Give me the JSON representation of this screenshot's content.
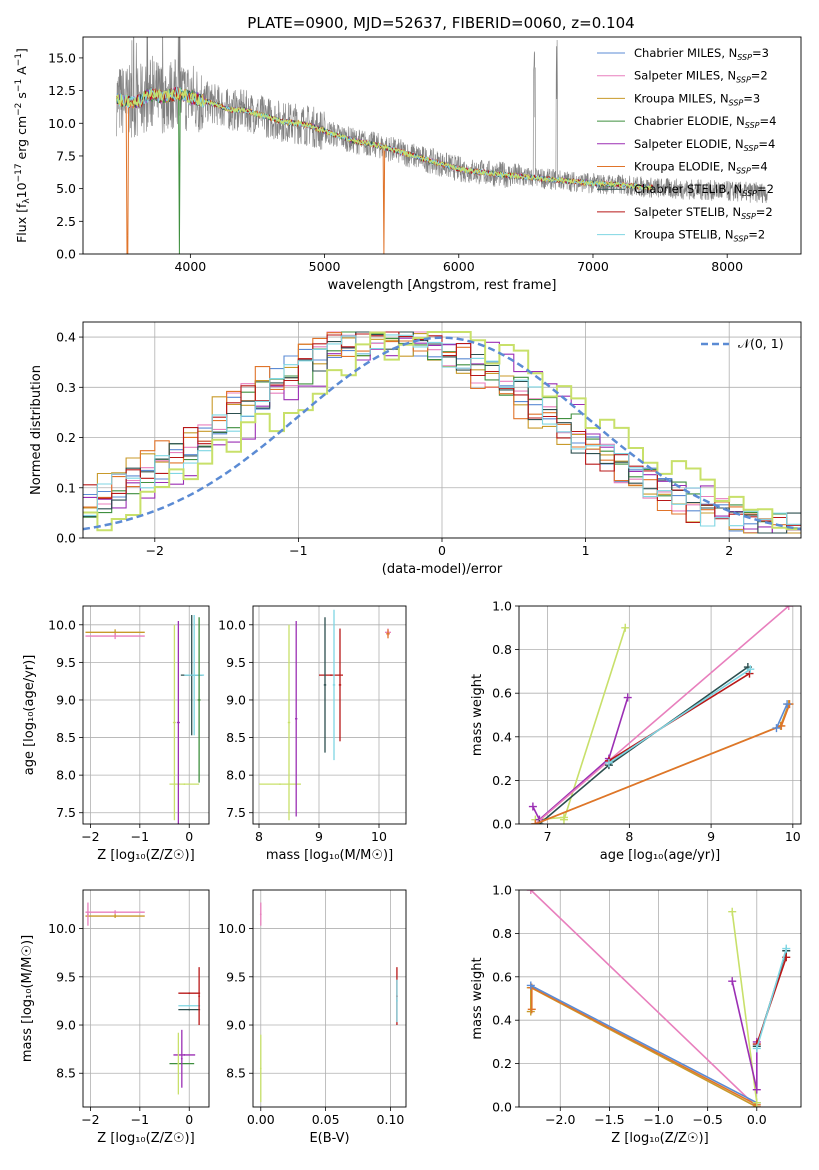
{
  "figure_title": "PLATE=0900, MJD=52637, FIBERID=0060, z=0.104",
  "colors": {
    "chabrier_miles": "#5b8bd4",
    "salpeter_miles": "#e87fbd",
    "kroupa_miles": "#c89a2a",
    "chabrier_elodie": "#3f8f3f",
    "salpeter_elodie": "#9b2fb4",
    "kroupa_elodie": "#e0742a",
    "chabrier_stelib": "#2c4f4f",
    "salpeter_stelib": "#b81818",
    "kroupa_stelib": "#7fd6e3",
    "lime": "#c8e06a",
    "data": "#808080",
    "normal": "#5b8bd4"
  },
  "legend": [
    {
      "label": "Chabrier MILES, N",
      "sub": "SSP",
      "tail": "=3",
      "color": "#5b8bd4"
    },
    {
      "label": "Salpeter MILES, N",
      "sub": "SSP",
      "tail": "=2",
      "color": "#e87fbd"
    },
    {
      "label": "Kroupa MILES, N",
      "sub": "SSP",
      "tail": "=3",
      "color": "#c89a2a"
    },
    {
      "label": "Chabrier ELODIE, N",
      "sub": "SSP",
      "tail": "=4",
      "color": "#3f8f3f"
    },
    {
      "label": "Salpeter ELODIE, N",
      "sub": "SSP",
      "tail": "=4",
      "color": "#9b2fb4"
    },
    {
      "label": "Kroupa ELODIE, N",
      "sub": "SSP",
      "tail": "=4",
      "color": "#e0742a"
    },
    {
      "label": "Chabrier STELIB, N",
      "sub": "SSP",
      "tail": "=2",
      "color": "#2c4f4f"
    },
    {
      "label": "Salpeter STELIB, N",
      "sub": "SSP",
      "tail": "=2",
      "color": "#b81818"
    },
    {
      "label": "Kroupa STELIB, N",
      "sub": "SSP",
      "tail": "=2",
      "color": "#7fd6e3"
    }
  ],
  "chart_data": [
    {
      "id": "spectrum",
      "type": "line",
      "xlabel": "wavelength [Angstrom, rest frame]",
      "ylabel_parts": [
        "Flux [f",
        "λ",
        "10",
        "−17",
        " erg cm",
        "−2",
        " s",
        "−1",
        " A",
        "−1",
        "]"
      ],
      "xlim": [
        3200,
        8550
      ],
      "ylim": [
        0,
        16.6
      ],
      "xticks": [
        4000,
        5000,
        6000,
        7000,
        8000
      ],
      "yticks": [
        0.0,
        2.5,
        5.0,
        7.5,
        10.0,
        12.5,
        15.0
      ],
      "continuum": [
        [
          3450,
          11.8
        ],
        [
          3600,
          11.6
        ],
        [
          3700,
          12.2
        ],
        [
          3800,
          12.0
        ],
        [
          3900,
          12.3
        ],
        [
          4000,
          12.0
        ],
        [
          4100,
          11.7
        ],
        [
          4200,
          11.4
        ],
        [
          4300,
          11.0
        ],
        [
          4400,
          11.0
        ],
        [
          4500,
          10.7
        ],
        [
          4600,
          10.4
        ],
        [
          4700,
          10.1
        ],
        [
          4800,
          10.0
        ],
        [
          4900,
          9.8
        ],
        [
          5000,
          9.4
        ],
        [
          5200,
          8.7
        ],
        [
          5400,
          8.3
        ],
        [
          5600,
          7.7
        ],
        [
          5800,
          7.1
        ],
        [
          6000,
          6.5
        ],
        [
          6200,
          6.2
        ],
        [
          6400,
          6.0
        ],
        [
          6600,
          5.8
        ],
        [
          6800,
          5.6
        ],
        [
          7000,
          5.4
        ],
        [
          7200,
          5.3
        ],
        [
          7400,
          5.1
        ],
        [
          7600,
          5.0
        ],
        [
          7800,
          4.9
        ],
        [
          8000,
          4.8
        ],
        [
          8200,
          4.7
        ],
        [
          8300,
          4.7
        ]
      ],
      "models": {
        "xmin": 3450,
        "xmax": 7450
      }
    },
    {
      "id": "residuals",
      "type": "histogram",
      "xlabel": "(data-model)/error",
      "ylabel": "Normed distribution",
      "xlim": [
        -2.5,
        2.5
      ],
      "ylim": [
        0,
        0.43
      ],
      "xticks": [
        -2,
        -1,
        0,
        1,
        2
      ],
      "yticks": [
        0.0,
        0.1,
        0.2,
        0.3,
        0.4
      ],
      "normal_label": "𝒩(0, 1)",
      "bin_width": 0.1
    },
    {
      "id": "age_vs_Z",
      "type": "scatter",
      "xlabel": "Z [log₁₀(Z/Z☉)]",
      "ylabel": "age  [log₁₀(age/yr)]",
      "xlim": [
        -2.15,
        0.4
      ],
      "ylim": [
        7.35,
        10.25
      ],
      "xticks": [
        -2,
        -1,
        0
      ],
      "yticks": [
        7.5,
        8.0,
        8.5,
        9.0,
        9.5,
        10.0
      ],
      "points": [
        {
          "x": -1.5,
          "y": 9.9,
          "ex": 0.6,
          "ey": 0.04,
          "c": "#c89a2a"
        },
        {
          "x": -1.5,
          "y": 9.85,
          "ex": 0.6,
          "ey": 0.04,
          "c": "#e87fbd"
        },
        {
          "x": 0.05,
          "y": 9.33,
          "ex": 0.22,
          "ey": 0.8,
          "c": "#2c4f4f"
        },
        {
          "x": 0.1,
          "y": 9.33,
          "ex": 0.2,
          "ey": 0.8,
          "c": "#7fd6e3"
        },
        {
          "x": -0.1,
          "y": 7.88,
          "ex": 0.3,
          "ey": 0.0,
          "c": "#c8e06a"
        },
        {
          "x": 0.2,
          "y": 9.0,
          "ex": 0.03,
          "ey": 1.1,
          "c": "#3f8f3f"
        },
        {
          "x": -0.22,
          "y": 8.7,
          "ex": 0.03,
          "ey": 1.35,
          "c": "#9b2fb4"
        },
        {
          "x": -0.3,
          "y": 8.7,
          "ex": 0.03,
          "ey": 1.3,
          "c": "#c8e06a"
        }
      ]
    },
    {
      "id": "age_vs_mass",
      "type": "scatter",
      "xlabel": "mass [log₁₀(M/M☉)]",
      "ylabel": "",
      "xlim": [
        7.9,
        10.45
      ],
      "ylim": [
        7.35,
        10.25
      ],
      "xticks": [
        8,
        9,
        10
      ],
      "yticks": [
        7.5,
        8.0,
        8.5,
        9.0,
        9.5,
        10.0
      ],
      "points": [
        {
          "x": 8.35,
          "y": 7.88,
          "ex": 0.35,
          "ey": 0.0,
          "c": "#c8e06a"
        },
        {
          "x": 8.5,
          "y": 8.7,
          "ex": 0.02,
          "ey": 1.3,
          "c": "#c8e06a"
        },
        {
          "x": 8.62,
          "y": 8.75,
          "ex": 0.02,
          "ey": 1.3,
          "c": "#9b2fb4"
        },
        {
          "x": 9.2,
          "y": 9.33,
          "ex": 0.2,
          "ey": 0.0,
          "c": "#b81818"
        },
        {
          "x": 9.1,
          "y": 9.2,
          "ex": 0.02,
          "ey": 0.9,
          "c": "#2c4f4f"
        },
        {
          "x": 9.25,
          "y": 9.2,
          "ex": 0.02,
          "ey": 1.0,
          "c": "#7fd6e3"
        },
        {
          "x": 9.35,
          "y": 9.2,
          "ex": 0.02,
          "ey": 0.75,
          "c": "#b81818"
        },
        {
          "x": 10.15,
          "y": 9.9,
          "ex": 0.05,
          "ey": 0.05,
          "c": "#e87fbd"
        },
        {
          "x": 10.15,
          "y": 9.88,
          "ex": 0.03,
          "ey": 0.06,
          "c": "#e0742a"
        }
      ]
    },
    {
      "id": "weight_vs_age",
      "type": "line",
      "xlabel": "age  [log₁₀(age/yr)]",
      "ylabel": "mass weight",
      "xlim": [
        6.65,
        10.1
      ],
      "ylim": [
        0,
        1.0
      ],
      "xticks": [
        7,
        8,
        9,
        10
      ],
      "yticks": [
        0.0,
        0.2,
        0.4,
        0.6,
        0.8,
        1.0
      ],
      "series": [
        {
          "c": "#c8e06a",
          "pts": [
            [
              7.2,
              0.02
            ],
            [
              7.95,
              0.9
            ]
          ]
        },
        {
          "c": "#c8e06a",
          "pts": [
            [
              6.85,
              0.02
            ],
            [
              7.2,
              0.03
            ]
          ]
        },
        {
          "c": "#9b2fb4",
          "pts": [
            [
              6.82,
              0.08
            ],
            [
              6.9,
              0.02
            ],
            [
              7.75,
              0.3
            ],
            [
              7.98,
              0.58
            ]
          ]
        },
        {
          "c": "#e87fbd",
          "pts": [
            [
              6.85,
              0.0
            ],
            [
              9.95,
              1.0
            ]
          ]
        },
        {
          "c": "#2c4f4f",
          "pts": [
            [
              6.9,
              0.0
            ],
            [
              7.75,
              0.27
            ],
            [
              9.45,
              0.72
            ]
          ]
        },
        {
          "c": "#b81818",
          "pts": [
            [
              7.75,
              0.29
            ],
            [
              9.47,
              0.69
            ]
          ]
        },
        {
          "c": "#7fd6e3",
          "pts": [
            [
              7.75,
              0.28
            ],
            [
              9.48,
              0.71
            ]
          ]
        },
        {
          "c": "#c89a2a",
          "pts": [
            [
              6.85,
              0.0
            ],
            [
              9.85,
              0.45
            ],
            [
              9.95,
              0.55
            ]
          ]
        },
        {
          "c": "#e0742a",
          "pts": [
            [
              6.85,
              0.0
            ],
            [
              9.86,
              0.45
            ],
            [
              9.96,
              0.55
            ]
          ]
        },
        {
          "c": "#5b8bd4",
          "pts": [
            [
              9.8,
              0.44
            ],
            [
              9.93,
              0.55
            ]
          ]
        }
      ]
    },
    {
      "id": "mass_vs_Z",
      "type": "scatter",
      "xlabel": "Z [log₁₀(Z/Z☉)]",
      "ylabel": "mass [log₁₀(M/M☉)]",
      "xlim": [
        -2.15,
        0.4
      ],
      "ylim": [
        8.15,
        10.4
      ],
      "xticks": [
        -2,
        -1,
        0
      ],
      "yticks": [
        8.5,
        9.0,
        9.5,
        10.0
      ],
      "points": [
        {
          "x": -1.5,
          "y": 10.17,
          "ex": 0.6,
          "ey": 0.02,
          "c": "#e87fbd"
        },
        {
          "x": -1.5,
          "y": 10.13,
          "ex": 0.6,
          "ey": 0.02,
          "c": "#c89a2a"
        },
        {
          "x": -2.05,
          "y": 10.15,
          "ex": 0.0,
          "ey": 0.12,
          "c": "#e87fbd"
        },
        {
          "x": 0.0,
          "y": 9.33,
          "ex": 0.22,
          "ey": 0.0,
          "c": "#b81818"
        },
        {
          "x": 0.0,
          "y": 9.2,
          "ex": 0.22,
          "ey": 0.0,
          "c": "#7fd6e3"
        },
        {
          "x": 0.0,
          "y": 9.16,
          "ex": 0.22,
          "ey": 0.0,
          "c": "#2c4f4f"
        },
        {
          "x": 0.2,
          "y": 9.3,
          "ex": 0.0,
          "ey": 0.3,
          "c": "#b81818"
        },
        {
          "x": -0.1,
          "y": 8.69,
          "ex": 0.22,
          "ey": 0.0,
          "c": "#9b2fb4"
        },
        {
          "x": -0.15,
          "y": 8.6,
          "ex": 0.25,
          "ey": 0.0,
          "c": "#3f8f3f"
        },
        {
          "x": -0.22,
          "y": 8.6,
          "ex": 0.0,
          "ey": 0.32,
          "c": "#c8e06a"
        },
        {
          "x": -0.15,
          "y": 8.65,
          "ex": 0.0,
          "ey": 0.3,
          "c": "#9b2fb4"
        }
      ]
    },
    {
      "id": "mass_vs_ebv",
      "type": "scatter",
      "xlabel": "E(B-V)",
      "ylabel": "",
      "xlim": [
        -0.006,
        0.112
      ],
      "ylim": [
        8.15,
        10.4
      ],
      "xticks": [
        0.0,
        0.05,
        0.1
      ],
      "xtick_labels": [
        "0.00",
        "0.05",
        "0.10"
      ],
      "yticks": [
        8.5,
        9.0,
        9.5,
        10.0
      ],
      "points": [
        {
          "x": 0.0,
          "y": 10.15,
          "ex": 0.0,
          "ey": 0.12,
          "c": "#e87fbd"
        },
        {
          "x": 0.0,
          "y": 8.55,
          "ex": 0.0,
          "ey": 0.35,
          "c": "#c8e06a"
        },
        {
          "x": 0.105,
          "y": 9.3,
          "ex": 0.0,
          "ey": 0.3,
          "c": "#b81818"
        },
        {
          "x": 0.105,
          "y": 9.25,
          "ex": 0.0,
          "ey": 0.22,
          "c": "#7fd6e3"
        }
      ]
    },
    {
      "id": "weight_vs_Z",
      "type": "line",
      "xlabel": "Z [log₁₀(Z/Z☉)]",
      "ylabel": "mass weight",
      "xlim": [
        -2.42,
        0.45
      ],
      "ylim": [
        0,
        1.0
      ],
      "xticks": [
        -2.0,
        -1.5,
        -1.0,
        -0.5,
        0.0
      ],
      "xtick_labels": [
        "−2.0",
        "−1.5",
        "−1.0",
        "−0.5",
        "0.0"
      ],
      "yticks": [
        0.0,
        0.2,
        0.4,
        0.6,
        0.8,
        1.0
      ],
      "series": [
        {
          "c": "#e87fbd",
          "pts": [
            [
              -2.3,
              1.0
            ],
            [
              0.0,
              0.0
            ]
          ]
        },
        {
          "c": "#c89a2a",
          "pts": [
            [
              -2.3,
              0.44
            ],
            [
              -2.3,
              0.55
            ],
            [
              0.0,
              0.0
            ]
          ]
        },
        {
          "c": "#e0742a",
          "pts": [
            [
              -2.29,
              0.45
            ],
            [
              -2.29,
              0.55
            ],
            [
              0.0,
              0.01
            ]
          ]
        },
        {
          "c": "#5b8bd4",
          "pts": [
            [
              -2.3,
              0.56
            ],
            [
              0.0,
              0.02
            ]
          ]
        },
        {
          "c": "#c8e06a",
          "pts": [
            [
              -0.25,
              0.9
            ],
            [
              0.0,
              0.02
            ]
          ]
        },
        {
          "c": "#9b2fb4",
          "pts": [
            [
              -0.25,
              0.58
            ],
            [
              0.0,
              0.08
            ],
            [
              0.0,
              0.3
            ]
          ]
        },
        {
          "c": "#2c4f4f",
          "pts": [
            [
              0.0,
              0.28
            ],
            [
              0.3,
              0.72
            ]
          ]
        },
        {
          "c": "#b81818",
          "pts": [
            [
              0.0,
              0.29
            ],
            [
              0.3,
              0.69
            ]
          ]
        },
        {
          "c": "#7fd6e3",
          "pts": [
            [
              0.0,
              0.27
            ],
            [
              0.3,
              0.73
            ]
          ]
        }
      ]
    }
  ]
}
